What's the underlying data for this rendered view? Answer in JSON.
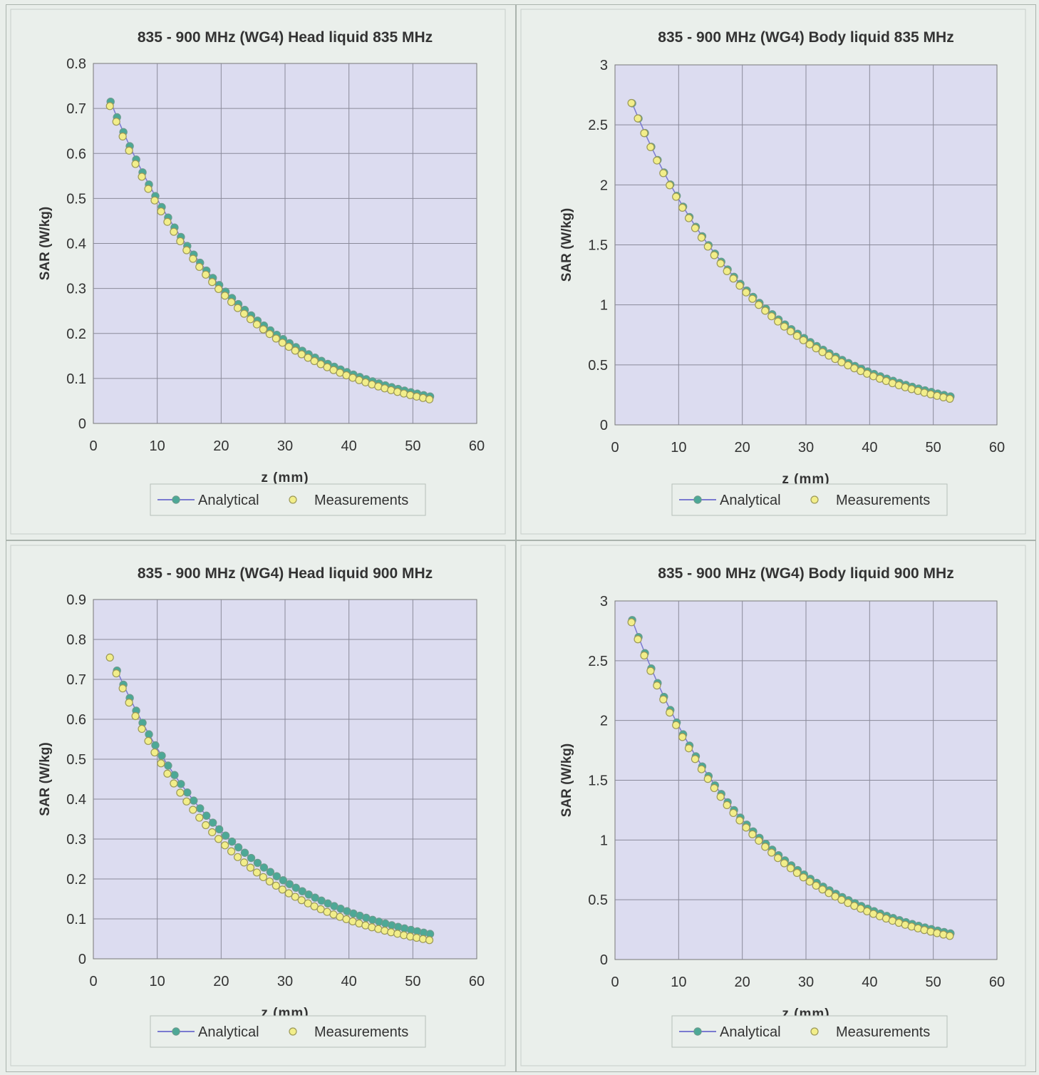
{
  "colors": {
    "page_bg": "#e9eeea",
    "panel_bg": "#eaefeb",
    "plot_bg": "#dcdcf0",
    "grid": "#8a8a9a",
    "analytical": "#4da896",
    "measurements": "#f2ee8a",
    "line": "#7a7ad0"
  },
  "chart_data": [
    {
      "type": "scatter",
      "title": "835 - 900 MHz (WG4) Head liquid 835 MHz",
      "xlabel": "z (mm)",
      "ylabel": "SAR (W/kg)",
      "xlim": [
        0,
        60
      ],
      "ylim": [
        0,
        0.8
      ],
      "xticks": [
        "0",
        "10",
        "20",
        "30",
        "40",
        "50",
        "60"
      ],
      "yticks": [
        "0",
        "0.1",
        "0.2",
        "0.3",
        "0.4",
        "0.5",
        "0.6",
        "0.7",
        "0.8"
      ],
      "grid": true,
      "legend": "bottom",
      "series": [
        {
          "name": "Analytical",
          "marker": "filled-circle",
          "line": true,
          "x0": 2.7,
          "dx": 1,
          "n": 51,
          "y0": 0.715,
          "decay_per_mm": 0.0496
        },
        {
          "name": "Measurements",
          "marker": "open-circle",
          "line": false,
          "x0": 2.7,
          "dx": 1,
          "n": 51,
          "y0": 0.71,
          "decay_per_mm": 0.05
        }
      ]
    },
    {
      "type": "scatter",
      "title": "835 - 900 MHz (WG4) Body liquid 835 MHz",
      "xlabel": "z (mm)",
      "ylabel": "SAR (W/kg)",
      "xlim": [
        0,
        60
      ],
      "ylim": [
        0,
        3
      ],
      "xticks": [
        "0",
        "10",
        "20",
        "30",
        "40",
        "50",
        "60"
      ],
      "yticks": [
        "0",
        "0.5",
        "1",
        "1.5",
        "2",
        "2.5",
        "3"
      ],
      "grid": true,
      "legend": "bottom",
      "series": [
        {
          "name": "Analytical",
          "marker": "filled-circle",
          "line": true,
          "x0": 2.7,
          "dx": 1,
          "n": 51,
          "y0": 2.68,
          "decay_per_mm": 0.0485
        },
        {
          "name": "Measurements",
          "marker": "open-circle",
          "line": false,
          "x0": 2.7,
          "dx": 1,
          "n": 51,
          "y0": 2.7,
          "decay_per_mm": 0.0488
        }
      ]
    },
    {
      "type": "scatter",
      "title": "835 - 900 MHz (WG4) Head liquid 900 MHz",
      "xlabel": "z (mm)",
      "ylabel": "SAR (W/kg)",
      "xlim": [
        0,
        60
      ],
      "ylim": [
        0,
        0.9
      ],
      "xticks": [
        "0",
        "10",
        "20",
        "30",
        "40",
        "50",
        "60"
      ],
      "yticks": [
        "0",
        "0.1",
        "0.2",
        "0.3",
        "0.4",
        "0.5",
        "0.6",
        "0.7",
        "0.8",
        "0.9"
      ],
      "grid": true,
      "legend": "bottom",
      "series": [
        {
          "name": "Analytical",
          "marker": "filled-circle",
          "line": true,
          "x0": 3.7,
          "dx": 1,
          "n": 50,
          "y0": 0.722,
          "decay_per_mm": 0.05
        },
        {
          "name": "Measurements",
          "marker": "open-circle",
          "line": false,
          "x0": 2.7,
          "dx": 1,
          "n": 51,
          "y0": 0.76,
          "decay_per_mm": 0.0536
        }
      ]
    },
    {
      "type": "scatter",
      "title": "835 - 900 MHz (WG4) Body liquid 900 MHz",
      "xlabel": "z (mm)",
      "ylabel": "SAR (W/kg)",
      "xlim": [
        0,
        60
      ],
      "ylim": [
        0,
        3
      ],
      "xticks": [
        "0",
        "10",
        "20",
        "30",
        "40",
        "50",
        "60"
      ],
      "yticks": [
        "0",
        "0.5",
        "1",
        "1.5",
        "2",
        "2.5",
        "3"
      ],
      "grid": true,
      "legend": "bottom",
      "series": [
        {
          "name": "Analytical",
          "marker": "filled-circle",
          "line": true,
          "x0": 2.7,
          "dx": 1,
          "n": 51,
          "y0": 2.84,
          "decay_per_mm": 0.0513
        },
        {
          "name": "Measurements",
          "marker": "open-circle",
          "line": false,
          "x0": 2.7,
          "dx": 1,
          "n": 51,
          "y0": 2.84,
          "decay_per_mm": 0.0516
        }
      ]
    }
  ]
}
